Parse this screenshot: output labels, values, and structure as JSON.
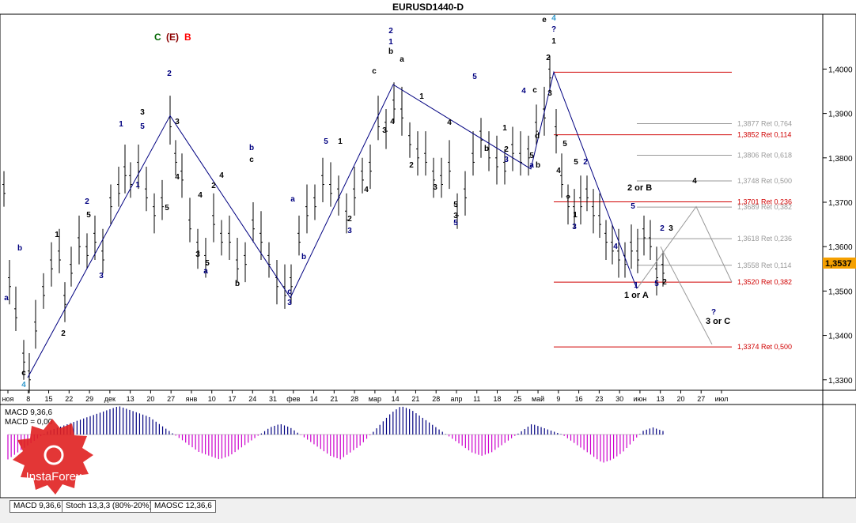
{
  "window": {
    "title": "EURUSD1440-D"
  },
  "tabs": [
    {
      "label": "MACD 9,36,6"
    },
    {
      "label": "Stoch 13,3,3 (80%-20%)"
    },
    {
      "label": "MAOSC 12,36,6"
    }
  ],
  "indicator": {
    "title_line1": "MACD 9,36,6",
    "title_line2": "MACD = 0,00"
  },
  "logo": {
    "text": "InstaForex"
  },
  "chart_data": {
    "type": "candlestick",
    "symbol": "EURUSD",
    "timeframe": "D1",
    "ylim": [
      1.328,
      1.412
    ],
    "current_price": "1,3537",
    "y_ticks": [
      "1,4000",
      "1,3900",
      "1,3800",
      "1,3700",
      "1,3600",
      "1,3500",
      "1,3400",
      "1,3300"
    ],
    "x_ticks": [
      "ноя",
      "8",
      "15",
      "22",
      "29",
      "дек",
      "13",
      "20",
      "27",
      "янв",
      "10",
      "17",
      "24",
      "31",
      "фев",
      "14",
      "21",
      "28",
      "мар",
      "14",
      "21",
      "28",
      "апр",
      "11",
      "18",
      "25",
      "май",
      "9",
      "16",
      "23",
      "30",
      "июн",
      "13",
      "20",
      "27",
      "июл"
    ],
    "fib_levels": [
      {
        "label": "1,3877 Ret 0,764",
        "price": 1.3877,
        "color": "#999999"
      },
      {
        "label": "1,3852 Ret 0,114",
        "price": 1.3852,
        "color": "#d00000"
      },
      {
        "label": "1,3806 Ret 0,618",
        "price": 1.3806,
        "color": "#999999"
      },
      {
        "label": "1,3748 Ret 0,500",
        "price": 1.3748,
        "color": "#999999"
      },
      {
        "label": "1,3701 Ret 0,236",
        "price": 1.3701,
        "color": "#d00000"
      },
      {
        "label": "1,3689 Ret 0,382",
        "price": 1.3689,
        "color": "#999999"
      },
      {
        "label": "1,3618 Ret 0,236",
        "price": 1.3618,
        "color": "#999999"
      },
      {
        "label": "1,3558 Ret 0,114",
        "price": 1.3558,
        "color": "#999999"
      },
      {
        "label": "1,3520 Ret 0,382",
        "price": 1.352,
        "color": "#d00000"
      },
      {
        "label": "1,3374 Ret 0,500",
        "price": 1.3374,
        "color": "#d00000"
      }
    ],
    "wave_labels": [
      {
        "text": "C",
        "color": "#006600"
      },
      {
        "text": "(E)",
        "color": "#8b0000"
      },
      {
        "text": "B",
        "color": "#ff0000"
      },
      {
        "text": "2 or B",
        "color": "#000000"
      },
      {
        "text": "1 or A",
        "color": "#000000"
      },
      {
        "text": "3 or C",
        "color": "#000000"
      }
    ],
    "wave_counts": [
      "c",
      "4",
      "a",
      "b",
      "2",
      "1",
      "2",
      "3",
      "5",
      "1",
      "2",
      "3",
      "5",
      "3",
      "1",
      "5",
      "4",
      "4",
      "2",
      "3",
      "a",
      "b",
      "c",
      "4",
      "5",
      "b",
      "c",
      "3",
      "b",
      "a",
      "5",
      "1",
      "2",
      "3",
      "4",
      "c",
      "2",
      "1",
      "b",
      "a",
      "4",
      "3",
      "1",
      "2",
      "3",
      "4",
      "5",
      "3",
      "5",
      "5",
      "b",
      "1",
      "2",
      "3",
      "4",
      "5",
      "a",
      "b",
      "c",
      "d",
      "e",
      "4",
      "?",
      "1",
      "2",
      "3",
      "4",
      "5",
      "?",
      "5",
      "1",
      "2",
      "3",
      "4",
      "5",
      "1",
      "2",
      "3",
      "4",
      "5",
      "2",
      "?",
      "?",
      "1",
      "?",
      "3"
    ],
    "macd_histogram": [
      -0.7,
      -0.5,
      -0.3,
      -0.1,
      0.1,
      0.2,
      0.3,
      0.4,
      0.5,
      0.6,
      0.7,
      0.8,
      0.7,
      0.6,
      0.5,
      0.3,
      0.1,
      -0.1,
      -0.3,
      -0.5,
      -0.6,
      -0.7,
      -0.6,
      -0.4,
      -0.2,
      0.0,
      0.2,
      0.3,
      0.2,
      0.0,
      -0.2,
      -0.4,
      -0.6,
      -0.7,
      -0.5,
      -0.3,
      0.0,
      0.3,
      0.6,
      0.8,
      0.7,
      0.5,
      0.3,
      0.1,
      -0.1,
      -0.3,
      -0.5,
      -0.6,
      -0.5,
      -0.3,
      -0.1,
      0.1,
      0.3,
      0.2,
      0.1,
      0.0,
      -0.2,
      -0.4,
      -0.6,
      -0.8,
      -0.7,
      -0.5,
      -0.2,
      0.1,
      0.2,
      0.1
    ]
  }
}
